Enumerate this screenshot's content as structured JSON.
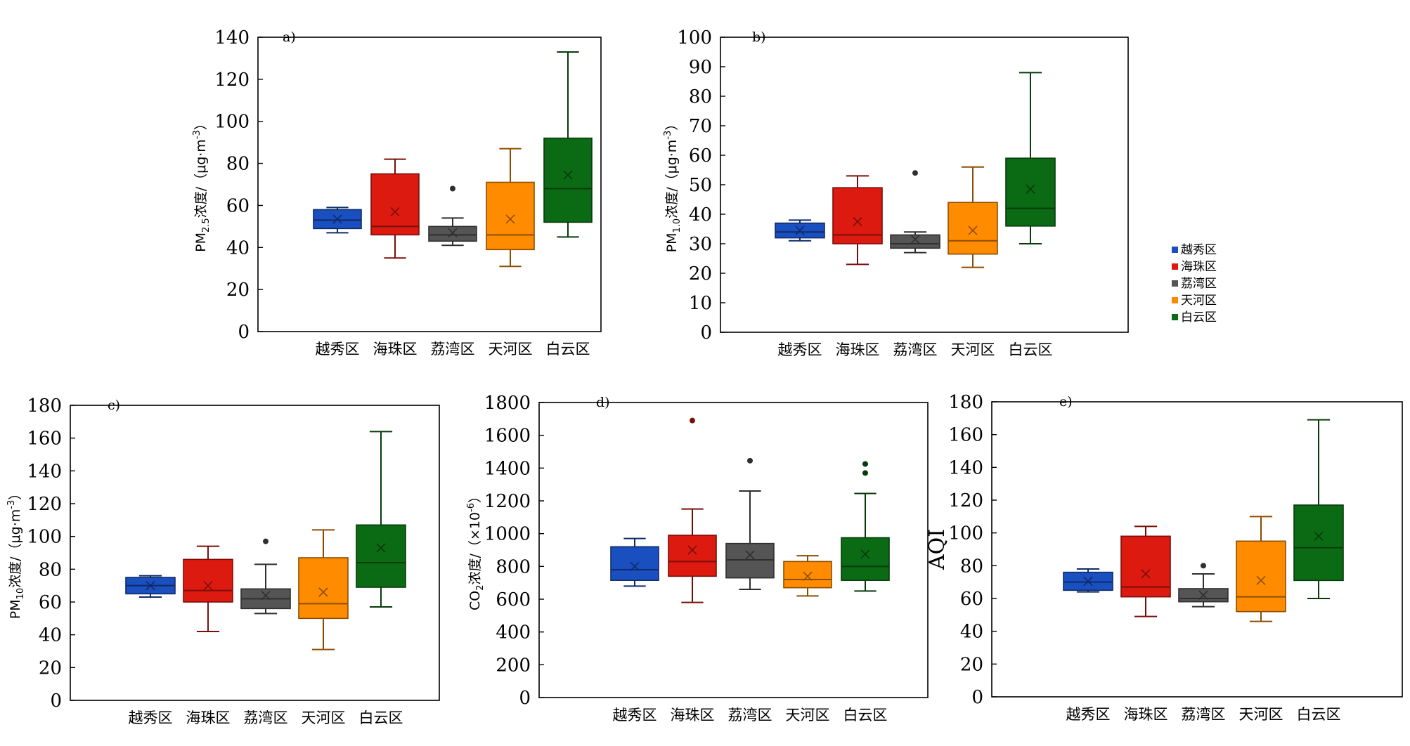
{
  "legend": {
    "position": "right",
    "items": [
      {
        "label": "越秀区",
        "color": "#1a4fbf"
      },
      {
        "label": "海珠区",
        "color": "#dd1a10"
      },
      {
        "label": "荔湾区",
        "color": "#555555"
      },
      {
        "label": "天河区",
        "color": "#ff8c00"
      },
      {
        "label": "白云区",
        "color": "#0b6b14"
      }
    ]
  },
  "chart_data": [
    {
      "type": "box",
      "panel_label": "a)",
      "ylabel": {
        "pre": "PM",
        "sub": "2.5",
        "mid": "浓度/（μg·m",
        "sup": "-3",
        "post": "）"
      },
      "ylim": [
        0,
        140
      ],
      "yticks": [
        0,
        20,
        40,
        60,
        80,
        100,
        120,
        140
      ],
      "grid": false,
      "categories": [
        "越秀区",
        "海珠区",
        "荔湾区",
        "天河区",
        "白云区"
      ],
      "boxes": [
        {
          "min": 47,
          "q1": 49,
          "median": 53,
          "q3": 58,
          "max": 59,
          "mean": 53.5,
          "outliers": []
        },
        {
          "min": 35,
          "q1": 46,
          "median": 50,
          "q3": 75,
          "max": 82,
          "mean": 57,
          "outliers": []
        },
        {
          "min": 41,
          "q1": 43,
          "median": 46,
          "q3": 50,
          "max": 54,
          "mean": 47,
          "outliers": [
            68
          ]
        },
        {
          "min": 31,
          "q1": 39,
          "median": 46,
          "q3": 71,
          "max": 87,
          "mean": 53.5,
          "outliers": []
        },
        {
          "min": 45,
          "q1": 52,
          "median": 68,
          "q3": 92,
          "max": 133,
          "mean": 74.5,
          "outliers": []
        }
      ]
    },
    {
      "type": "box",
      "panel_label": "b)",
      "ylabel": {
        "pre": "PM",
        "sub": "1.0",
        "mid": "浓度/（μg·m",
        "sup": "-3",
        "post": "）"
      },
      "ylim": [
        0,
        100
      ],
      "yticks": [
        0,
        10,
        20,
        30,
        40,
        50,
        60,
        70,
        80,
        90,
        100
      ],
      "grid": false,
      "categories": [
        "越秀区",
        "海珠区",
        "荔湾区",
        "天河区",
        "白云区"
      ],
      "boxes": [
        {
          "min": 31,
          "q1": 32,
          "median": 34,
          "q3": 37,
          "max": 38,
          "mean": 34.5,
          "outliers": []
        },
        {
          "min": 23,
          "q1": 30,
          "median": 33,
          "q3": 49,
          "max": 53,
          "mean": 37.5,
          "outliers": []
        },
        {
          "min": 27,
          "q1": 28.5,
          "median": 30,
          "q3": 33,
          "max": 34,
          "mean": 31.5,
          "outliers": [
            54
          ]
        },
        {
          "min": 22,
          "q1": 26.5,
          "median": 31,
          "q3": 44,
          "max": 56,
          "mean": 34.5,
          "outliers": []
        },
        {
          "min": 30,
          "q1": 36,
          "median": 42,
          "q3": 59,
          "max": 88,
          "mean": 48.5,
          "outliers": []
        }
      ]
    },
    {
      "type": "box",
      "panel_label": "c)",
      "ylabel": {
        "pre": "PM",
        "sub": "10",
        "mid": "浓度/（μg·m",
        "sup": "-3",
        "post": "）"
      },
      "ylim": [
        0,
        180
      ],
      "yticks": [
        0,
        20,
        40,
        60,
        80,
        100,
        120,
        140,
        160,
        180
      ],
      "grid": false,
      "categories": [
        "越秀区",
        "海珠区",
        "荔湾区",
        "天河区",
        "白云区"
      ],
      "boxes": [
        {
          "min": 63,
          "q1": 65,
          "median": 70,
          "q3": 75,
          "max": 76,
          "mean": 70,
          "outliers": []
        },
        {
          "min": 42,
          "q1": 60,
          "median": 67,
          "q3": 86,
          "max": 94,
          "mean": 70,
          "outliers": []
        },
        {
          "min": 53,
          "q1": 56,
          "median": 62,
          "q3": 68,
          "max": 83,
          "mean": 64,
          "outliers": [
            97
          ]
        },
        {
          "min": 31,
          "q1": 50,
          "median": 59,
          "q3": 87,
          "max": 104,
          "mean": 66,
          "outliers": []
        },
        {
          "min": 57,
          "q1": 69,
          "median": 84,
          "q3": 107,
          "max": 164,
          "mean": 93,
          "outliers": []
        }
      ]
    },
    {
      "type": "box",
      "panel_label": "d)",
      "ylabel": {
        "pre": "CO",
        "sub": "2",
        "mid": "浓度/（×10",
        "sup": "-6",
        "post": "）"
      },
      "ylim": [
        0,
        1800
      ],
      "yticks": [
        0,
        200,
        400,
        600,
        800,
        1000,
        1200,
        1400,
        1600,
        1800
      ],
      "grid": false,
      "categories": [
        "越秀区",
        "海珠区",
        "荔湾区",
        "天河区",
        "白云区"
      ],
      "boxes": [
        {
          "min": 680,
          "q1": 715,
          "median": 780,
          "q3": 920,
          "max": 970,
          "mean": 800,
          "outliers": []
        },
        {
          "min": 580,
          "q1": 740,
          "median": 830,
          "q3": 990,
          "max": 1150,
          "mean": 900,
          "outliers": [
            1690
          ]
        },
        {
          "min": 660,
          "q1": 730,
          "median": 840,
          "q3": 940,
          "max": 1260,
          "mean": 870,
          "outliers": [
            1445
          ]
        },
        {
          "min": 620,
          "q1": 670,
          "median": 720,
          "q3": 830,
          "max": 865,
          "mean": 740,
          "outliers": []
        },
        {
          "min": 650,
          "q1": 715,
          "median": 800,
          "q3": 975,
          "max": 1245,
          "mean": 875,
          "outliers": [
            1370,
            1425
          ]
        }
      ]
    },
    {
      "type": "box",
      "panel_label": "e)",
      "ylabel": {
        "pre": "",
        "sub": "",
        "mid": "AQI",
        "sup": "",
        "post": ""
      },
      "ylim": [
        0,
        180
      ],
      "yticks": [
        0,
        20,
        40,
        60,
        80,
        100,
        120,
        140,
        160,
        180
      ],
      "grid": false,
      "categories": [
        "越秀区",
        "海珠区",
        "荔湾区",
        "天河区",
        "白云区"
      ],
      "boxes": [
        {
          "min": 64,
          "q1": 65,
          "median": 70,
          "q3": 76,
          "max": 78,
          "mean": 70.5,
          "outliers": []
        },
        {
          "min": 49,
          "q1": 61,
          "median": 67,
          "q3": 98,
          "max": 104,
          "mean": 75,
          "outliers": []
        },
        {
          "min": 55,
          "q1": 58,
          "median": 60,
          "q3": 66,
          "max": 75,
          "mean": 62,
          "outliers": [
            80
          ]
        },
        {
          "min": 46,
          "q1": 52,
          "median": 61,
          "q3": 95,
          "max": 110,
          "mean": 71,
          "outliers": []
        },
        {
          "min": 60,
          "q1": 71,
          "median": 91,
          "q3": 117,
          "max": 169,
          "mean": 98,
          "outliers": []
        }
      ]
    }
  ]
}
